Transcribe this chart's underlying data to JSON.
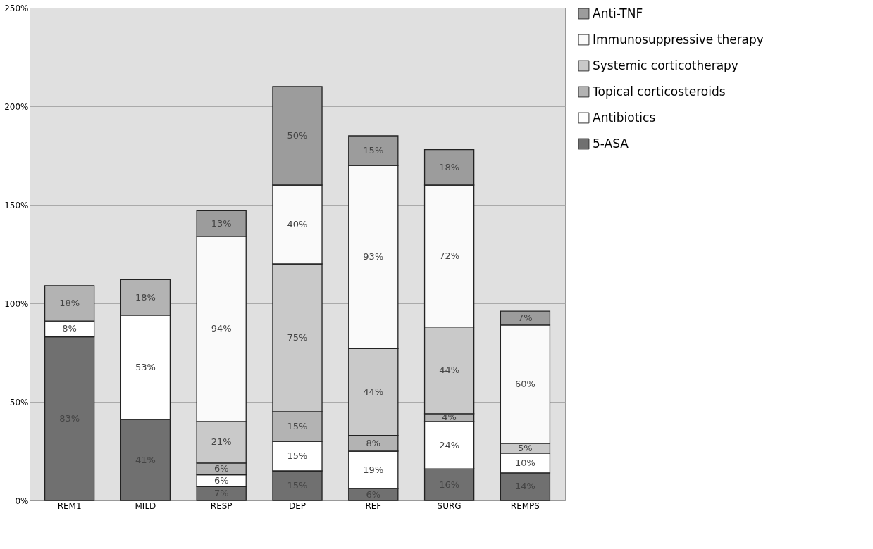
{
  "chart_data": {
    "type": "bar",
    "stacked": true,
    "categories": [
      "REM1",
      "MILD",
      "RESP",
      "DEP",
      "REF",
      "SURG",
      "REMPS"
    ],
    "series": [
      {
        "name": "5-ASA",
        "color": "#707070",
        "values": [
          83,
          41,
          7,
          15,
          6,
          16,
          14
        ],
        "value_labels": [
          "83%",
          "41%",
          "7%",
          "15%",
          "6%",
          "16%",
          "14%"
        ]
      },
      {
        "name": "Antibiotics",
        "color": "#ffffff",
        "values": [
          8,
          53,
          6,
          15,
          19,
          24,
          10
        ],
        "value_labels": [
          "8%",
          "53%",
          "6%",
          "15%",
          "19%",
          "24%",
          "10%"
        ]
      },
      {
        "name": "Topical corticosteroids",
        "color": "#b3b3b3",
        "values": [
          18,
          18,
          6,
          15,
          8,
          4,
          null
        ],
        "value_labels": [
          "18%",
          "18%",
          "6%",
          "15%",
          "8%",
          "4%",
          null
        ]
      },
      {
        "name": "Systemic corticotherapy",
        "color": "#c9c9c9",
        "values": [
          null,
          null,
          21,
          75,
          44,
          44,
          5
        ],
        "value_labels": [
          null,
          null,
          "21%",
          "75%",
          "44%",
          "44%",
          "5%"
        ]
      },
      {
        "name": "Immunosuppressive therapy",
        "color": "#fafafa",
        "values": [
          null,
          null,
          94,
          40,
          93,
          72,
          60
        ],
        "value_labels": [
          null,
          null,
          "94%",
          "40%",
          "93%",
          "72%",
          "60%"
        ]
      },
      {
        "name": "Anti-TNF",
        "color": "#9c9c9c",
        "values": [
          null,
          null,
          13,
          50,
          15,
          18,
          7
        ],
        "value_labels": [
          null,
          null,
          "13%",
          "50%",
          "15%",
          "18%",
          "7%"
        ]
      }
    ],
    "ylim": [
      0,
      250
    ],
    "yticks": [
      {
        "value": 0,
        "label": "0%"
      },
      {
        "value": 50,
        "label": "50%"
      },
      {
        "value": 100,
        "label": "100%"
      },
      {
        "value": 150,
        "label": "150%"
      },
      {
        "value": 200,
        "label": "200%"
      },
      {
        "value": 250,
        "label": "250%"
      }
    ],
    "grid": "y",
    "legend": "right"
  }
}
